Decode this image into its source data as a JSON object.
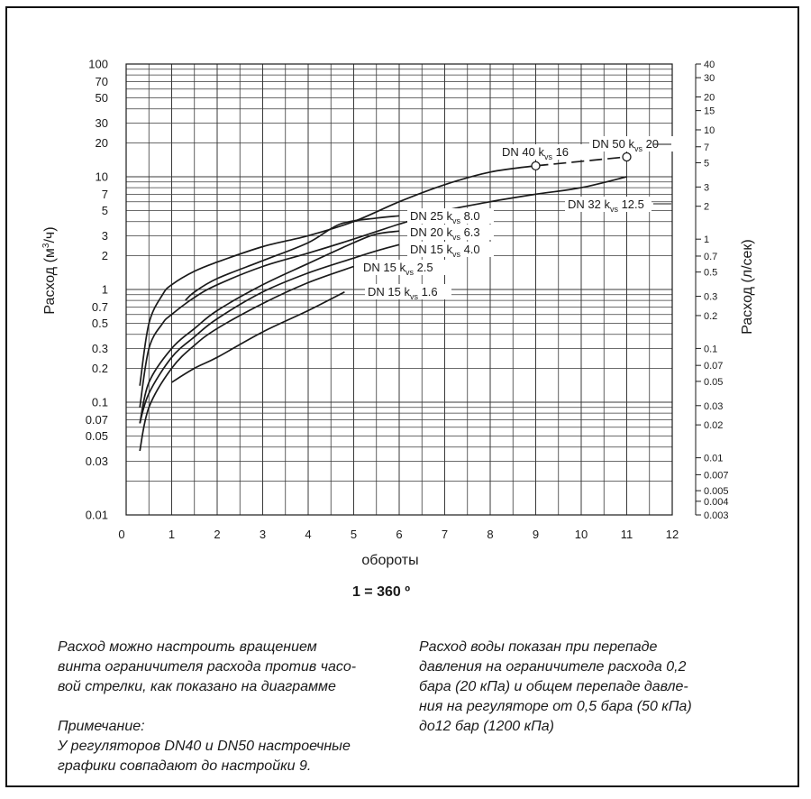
{
  "chart_data": {
    "type": "line",
    "xlabel": "обороты",
    "subtitle": "1 = 360 º",
    "ylabel_left": "Расход  (м³/ч)",
    "ylabel_left_parts": {
      "prefix": "Расход  (м",
      "sup": "3",
      "suffix": "/ч)"
    },
    "ylabel_right": "Расход  (л/сек)",
    "x_range": [
      0,
      12
    ],
    "x_ticks": [
      "0",
      "1",
      "2",
      "3",
      "4",
      "5",
      "6",
      "7",
      "8",
      "9",
      "10",
      "11",
      "12"
    ],
    "y_scale": "log",
    "y_range": [
      0.01,
      100
    ],
    "y_left_ticks": [
      "0.01",
      "0.03",
      "0.05",
      "0.07",
      "0.1",
      "0.2",
      "0.3",
      "0.5",
      "0.7",
      "1",
      "2",
      "3",
      "5",
      "7",
      "10",
      "20",
      "30",
      "50",
      "70",
      "100"
    ],
    "y_right_scale": "log",
    "y_right_range": [
      0.003,
      40
    ],
    "y_right_ticks": [
      "0.003",
      "0.004",
      "0.005",
      "0.007",
      "0.01",
      "0.02",
      "0.03",
      "0.05",
      "0.07",
      "0.1",
      "0.2",
      "0.3",
      "0.5",
      "0.7",
      "1",
      "2",
      "3",
      "5",
      "7",
      "10",
      "15",
      "20",
      "30",
      "40"
    ],
    "grid": true,
    "series": [
      {
        "name": "DN 50 kvs 20",
        "label_parts": [
          "DN 50 k",
          "vs",
          " 20"
        ],
        "dashed_segment": true,
        "x": [
          9,
          11
        ],
        "y": [
          12.5,
          15
        ]
      },
      {
        "name": "DN 40 kvs 16",
        "label_parts": [
          "DN 40 k",
          "vs",
          " 16"
        ],
        "x": [
          0.3,
          0.5,
          0.8,
          1.0,
          1.5,
          2.0,
          3.0,
          4.0,
          5.0,
          6.0,
          7.0,
          8.0,
          9.0
        ],
        "y": [
          0.14,
          0.5,
          0.9,
          1.1,
          1.45,
          1.75,
          2.4,
          3.0,
          4.0,
          6.0,
          8.5,
          11,
          12.5
        ]
      },
      {
        "name": "DN 32 kvs 12.5",
        "label_parts": [
          "DN 32 k",
          "vs",
          " 12.5"
        ],
        "x": [
          0.3,
          0.5,
          0.8,
          1.0,
          1.5,
          2.0,
          3.0,
          4.0,
          5.0,
          6.0,
          7.0,
          8.0,
          9.0,
          10.0,
          11.0
        ],
        "y": [
          0.09,
          0.3,
          0.5,
          0.6,
          0.85,
          1.1,
          1.6,
          2.1,
          2.8,
          3.8,
          5.0,
          6.0,
          7.0,
          8.0,
          10.0
        ]
      },
      {
        "name": "DN 25 kvs 8.0",
        "label_parts": [
          "DN 25 k",
          "vs",
          " 8.0"
        ],
        "x": [
          1.3,
          1.5,
          2.0,
          3.0,
          4.0,
          4.7,
          5.5,
          6.0
        ],
        "y": [
          0.8,
          0.95,
          1.25,
          1.8,
          2.6,
          3.8,
          4.3,
          4.5
        ]
      },
      {
        "name": "DN 20 kvs 6.3",
        "label_parts": [
          "DN 20 k",
          "vs",
          " 6.3"
        ],
        "x": [
          0.3,
          0.5,
          1.0,
          1.5,
          2.0,
          3.0,
          4.0,
          5.0,
          5.5,
          6.0
        ],
        "y": [
          0.065,
          0.15,
          0.3,
          0.45,
          0.65,
          1.1,
          1.7,
          2.6,
          3.1,
          3.3
        ]
      },
      {
        "name": "DN 15 kvs 4.0",
        "label_parts": [
          "DN 15 k",
          "vs",
          " 4.0"
        ],
        "x": [
          0.3,
          0.5,
          1.0,
          1.5,
          2.0,
          3.0,
          4.0,
          5.0,
          5.5,
          6.0
        ],
        "y": [
          0.065,
          0.12,
          0.25,
          0.38,
          0.55,
          0.95,
          1.4,
          1.9,
          2.2,
          2.5
        ]
      },
      {
        "name": "DN 15 kvs 2.5",
        "label_parts": [
          "DN 15 k",
          "vs",
          " 2.5"
        ],
        "x": [
          0.3,
          0.5,
          1.0,
          1.5,
          2.0,
          3.0,
          4.0,
          5.0
        ],
        "y": [
          0.037,
          0.09,
          0.2,
          0.32,
          0.45,
          0.75,
          1.15,
          1.6
        ]
      },
      {
        "name": "DN 15 kvs 1.6",
        "label_parts": [
          "DN 15 k",
          "vs",
          " 1.6"
        ],
        "x": [
          1.0,
          1.5,
          2.0,
          3.0,
          4.0,
          4.8
        ],
        "y": [
          0.15,
          0.2,
          0.25,
          0.42,
          0.65,
          0.95
        ]
      }
    ],
    "markers": [
      {
        "series": "DN 40 kvs 16",
        "x": 9,
        "y": 12.5,
        "shape": "open-circle"
      },
      {
        "series": "DN 50 kvs 20",
        "x": 11,
        "y": 15,
        "shape": "open-circle"
      }
    ]
  },
  "notes": {
    "left": "Расход можно настроить вращением\nвинта ограничителя расхода против часо-\nвой стрелки, как показано на диаграмме",
    "left_note": "Примечание:\nУ регуляторов DN40 и DN50 настроечные\nграфики совпадают до настройки 9.",
    "right": "Расход воды показан при перепаде\nдавления на ограничителе расхода 0,2\nбара (20 кПа) и общем перепаде давле-\nния на регуляторе от 0,5 бара (50 кПа)\nдо12 бар (1200 кПа)"
  },
  "colors": {
    "ink": "#1a1a1a",
    "grid": "#3a3a3a",
    "background": "#ffffff"
  }
}
